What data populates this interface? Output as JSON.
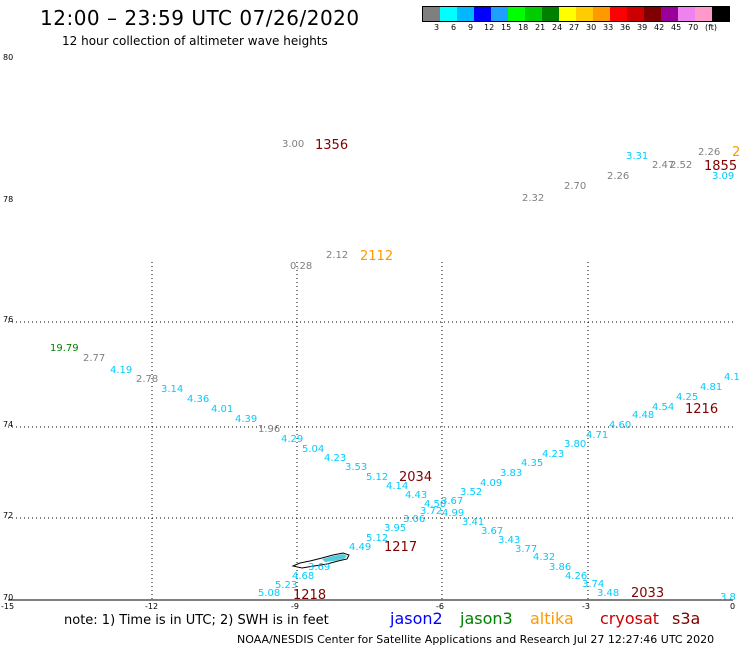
{
  "header": {
    "title": "12:00 – 23:59 UTC 07/26/2020",
    "subtitle": "12 hour collection of altimeter wave heights"
  },
  "legend": {
    "unit": "(ft)",
    "swatches": [
      {
        "color": "#7f7f7f",
        "label": ""
      },
      {
        "color": "#00ffff",
        "label": "3"
      },
      {
        "color": "#00b8ff",
        "label": "6"
      },
      {
        "color": "#0000ff",
        "label": "9"
      },
      {
        "color": "#1fa0ff",
        "label": "12"
      },
      {
        "color": "#00ff00",
        "label": "15"
      },
      {
        "color": "#00cc00",
        "label": "18"
      },
      {
        "color": "#008000",
        "label": "21"
      },
      {
        "color": "#ffff00",
        "label": "24"
      },
      {
        "color": "#ffcc00",
        "label": "27"
      },
      {
        "color": "#ff9900",
        "label": "30"
      },
      {
        "color": "#ff0000",
        "label": "33"
      },
      {
        "color": "#cc0000",
        "label": "36"
      },
      {
        "color": "#800000",
        "label": "39"
      },
      {
        "color": "#990099",
        "label": "42"
      },
      {
        "color": "#ee82ee",
        "label": "45"
      },
      {
        "color": "#ff99cc",
        "label": "70"
      },
      {
        "color": "#000000",
        "label": ""
      }
    ]
  },
  "axes": {
    "lon_ticks": [
      "-15",
      "-12",
      "-9",
      "-6",
      "-3",
      "0"
    ],
    "lat_ticks": [
      "70",
      "72",
      "74",
      "76",
      "78",
      "80"
    ]
  },
  "note": "note:  1) Time is in UTC;  2) SWH is in feet",
  "satellites": [
    {
      "name": "jason2",
      "color": "#0000ff"
    },
    {
      "name": "jason3",
      "color": "#008000"
    },
    {
      "name": "altika",
      "color": "#ff9900"
    },
    {
      "name": "cryosat",
      "color": "#cc0000"
    },
    {
      "name": "s3a",
      "color": "#800000"
    }
  ],
  "footer": "NOAA/NESDIS Center for Satellite Applications and Research     Jul 27 12:27:46 UTC 2020",
  "points": [
    {
      "text": "3.00",
      "color": "#7f7f7f"
    },
    {
      "text": "1356",
      "color": "#800000"
    },
    {
      "text": "2.26",
      "color": "#7f7f7f"
    },
    {
      "text": "2",
      "color": "#ff9900"
    },
    {
      "text": "3.31",
      "color": "#00ccff"
    },
    {
      "text": "2.47",
      "color": "#7f7f7f"
    },
    {
      "text": "2.52",
      "color": "#7f7f7f"
    },
    {
      "text": "1855",
      "color": "#800000"
    },
    {
      "text": "3.09",
      "color": "#00ccff"
    },
    {
      "text": "2.26",
      "color": "#7f7f7f"
    },
    {
      "text": "2.70",
      "color": "#7f7f7f"
    },
    {
      "text": "2.32",
      "color": "#7f7f7f"
    },
    {
      "text": "2.12",
      "color": "#7f7f7f"
    },
    {
      "text": "2112",
      "color": "#ff9900"
    },
    {
      "text": "0.28",
      "color": "#7f7f7f"
    },
    {
      "text": "19.79",
      "color": "#008000"
    },
    {
      "text": "2.77",
      "color": "#7f7f7f"
    },
    {
      "text": "4.19",
      "color": "#00ccff"
    },
    {
      "text": "2.78",
      "color": "#7f7f7f"
    },
    {
      "text": "3.14",
      "color": "#00ccff"
    },
    {
      "text": "4.36",
      "color": "#00ccff"
    },
    {
      "text": "4.01",
      "color": "#00ccff"
    },
    {
      "text": "4.39",
      "color": "#00ccff"
    },
    {
      "text": "1.96",
      "color": "#7f7f7f"
    },
    {
      "text": "4.29",
      "color": "#00ccff"
    },
    {
      "text": "5.04",
      "color": "#00ccff"
    },
    {
      "text": "4.23",
      "color": "#00ccff"
    },
    {
      "text": "3.53",
      "color": "#00ccff"
    },
    {
      "text": "5.12",
      "color": "#00ccff"
    },
    {
      "text": "2034",
      "color": "#800000"
    },
    {
      "text": "4.14",
      "color": "#00ccff"
    },
    {
      "text": "4.43",
      "color": "#00ccff"
    },
    {
      "text": "4.50",
      "color": "#00ccff"
    },
    {
      "text": "3.67",
      "color": "#00ccff"
    },
    {
      "text": "3.72",
      "color": "#00ccff"
    },
    {
      "text": "4.99",
      "color": "#00ccff"
    },
    {
      "text": "3.06",
      "color": "#00ccff"
    },
    {
      "text": "3.52",
      "color": "#00ccff"
    },
    {
      "text": "3.41",
      "color": "#00ccff"
    },
    {
      "text": "3.95",
      "color": "#00ccff"
    },
    {
      "text": "5.12",
      "color": "#00ccff"
    },
    {
      "text": "1217",
      "color": "#800000"
    },
    {
      "text": "4.49",
      "color": "#00ccff"
    },
    {
      "text": "3.67",
      "color": "#00ccff"
    },
    {
      "text": "3.43",
      "color": "#00ccff"
    },
    {
      "text": "3.77",
      "color": "#00ccff"
    },
    {
      "text": "4.32",
      "color": "#00ccff"
    },
    {
      "text": "3.86",
      "color": "#00ccff"
    },
    {
      "text": "4.26",
      "color": "#00ccff"
    },
    {
      "text": "3.74",
      "color": "#00ccff"
    },
    {
      "text": "3.48",
      "color": "#00ccff"
    },
    {
      "text": "2033",
      "color": "#800000"
    },
    {
      "text": "3.8",
      "color": "#00ccff"
    },
    {
      "text": "3.69",
      "color": "#00ccff"
    },
    {
      "text": "4.68",
      "color": "#00ccff"
    },
    {
      "text": "5.23",
      "color": "#00ccff"
    },
    {
      "text": "5.08",
      "color": "#00ccff"
    },
    {
      "text": "1218",
      "color": "#800000"
    },
    {
      "text": "4.09",
      "color": "#00ccff"
    },
    {
      "text": "3.83",
      "color": "#00ccff"
    },
    {
      "text": "4.35",
      "color": "#00ccff"
    },
    {
      "text": "4.23",
      "color": "#00ccff"
    },
    {
      "text": "3.80",
      "color": "#00ccff"
    },
    {
      "text": "4.71",
      "color": "#00ccff"
    },
    {
      "text": "4.60",
      "color": "#00ccff"
    },
    {
      "text": "4.48",
      "color": "#00ccff"
    },
    {
      "text": "4.54",
      "color": "#00ccff"
    },
    {
      "text": "4.25",
      "color": "#00ccff"
    },
    {
      "text": "1216",
      "color": "#800000"
    },
    {
      "text": "4.81",
      "color": "#00ccff"
    },
    {
      "text": "4.1",
      "color": "#00ccff"
    }
  ]
}
